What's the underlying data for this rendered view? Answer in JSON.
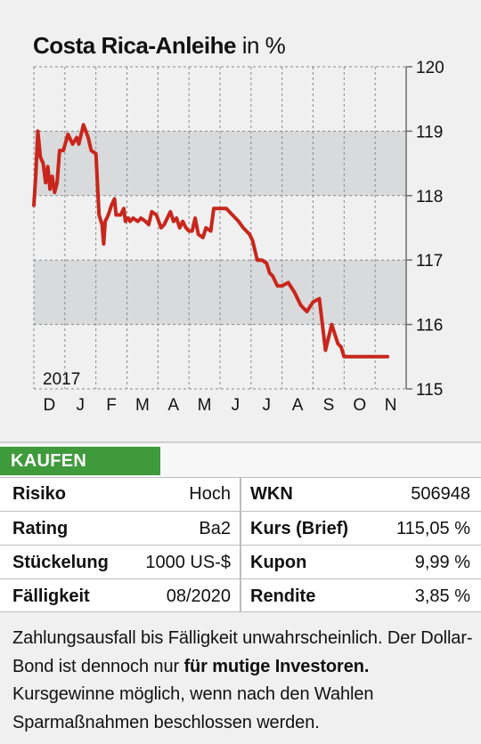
{
  "chart_data": {
    "type": "line",
    "title": "Costa Rica-Anleihe",
    "unit": "in %",
    "year_label": "2017",
    "x_ticks": [
      "D",
      "J",
      "F",
      "M",
      "A",
      "M",
      "J",
      "J",
      "A",
      "S",
      "O",
      "N"
    ],
    "yticks": [
      115,
      116,
      117,
      118,
      119,
      120
    ],
    "ylim": [
      115,
      120
    ],
    "grid": true,
    "shaded_bands": [
      [
        118,
        119
      ],
      [
        116,
        117
      ]
    ],
    "line_color": "#c8261c",
    "series": [
      {
        "x": [
          0,
          0.06,
          0.13,
          0.21,
          0.3,
          0.38,
          0.45,
          0.52,
          0.59,
          0.67,
          0.75,
          0.83,
          0.88,
          0.95,
          1.1,
          1.25,
          1.38,
          1.45,
          1.6,
          1.75,
          1.85,
          2.0,
          2.1,
          2.2,
          2.25,
          2.3,
          2.4,
          2.5,
          2.6,
          2.65,
          2.8,
          2.9,
          2.95,
          3.0,
          3.05,
          3.1,
          3.2,
          3.35,
          3.45,
          3.6,
          3.7,
          3.8,
          3.95,
          4.1,
          4.2,
          4.3,
          4.4,
          4.5,
          4.6,
          4.7,
          4.8,
          4.9,
          5.0,
          5.1,
          5.2,
          5.3,
          5.45,
          5.55,
          5.7,
          5.8,
          5.95,
          6.1,
          6.2,
          6.3,
          6.4,
          6.5,
          6.6,
          6.75,
          6.85,
          6.95,
          7.05,
          7.2,
          7.35,
          7.5,
          7.6,
          7.7,
          7.85,
          8.0,
          8.2,
          8.4,
          8.6,
          8.8,
          9.0,
          9.2,
          9.4,
          9.6,
          9.8,
          9.9,
          10.0,
          10.1,
          10.3,
          10.4,
          10.5,
          10.6,
          10.7,
          10.8,
          10.85,
          10.9,
          11.0,
          11.05,
          11.1,
          11.2,
          11.3,
          11.4
        ],
        "y": [
          117.85,
          118.3,
          119.0,
          118.6,
          118.5,
          118.2,
          118.45,
          118.1,
          118.3,
          118.05,
          118.2,
          118.7,
          118.7,
          118.7,
          118.95,
          118.8,
          118.9,
          118.8,
          119.1,
          118.9,
          118.7,
          118.65,
          117.7,
          117.55,
          117.25,
          117.6,
          117.7,
          117.85,
          117.95,
          117.7,
          117.7,
          117.8,
          117.6,
          117.65,
          117.65,
          117.6,
          117.65,
          117.6,
          117.65,
          117.6,
          117.55,
          117.75,
          117.7,
          117.5,
          117.55,
          117.65,
          117.75,
          117.6,
          117.65,
          117.5,
          117.6,
          117.5,
          117.45,
          117.45,
          117.65,
          117.4,
          117.35,
          117.5,
          117.45,
          117.8,
          117.8,
          117.8,
          117.8,
          117.75,
          117.7,
          117.65,
          117.6,
          117.5,
          117.45,
          117.4,
          117.3,
          117.0,
          117.0,
          116.95,
          116.8,
          116.75,
          116.6,
          116.6,
          116.65,
          116.5,
          116.3,
          116.2,
          116.35,
          116.4,
          115.6,
          116.0,
          115.7,
          115.65,
          115.5,
          115.5,
          115.5,
          115.5,
          115.5,
          115.5,
          115.5,
          115.5,
          115.5,
          115.5,
          115.5,
          115.5,
          115.5,
          115.5,
          115.5,
          115.5
        ]
      }
    ]
  },
  "verdict": {
    "label": "KAUFEN",
    "color": "#3f9a3c"
  },
  "table": {
    "left": [
      {
        "label": "Risiko",
        "value": "Hoch"
      },
      {
        "label": "Rating",
        "value": "Ba2"
      },
      {
        "label": "Stückelung",
        "value": "1000 US-$"
      },
      {
        "label": "Fälligkeit",
        "value": "08/2020"
      }
    ],
    "right": [
      {
        "label": "WKN",
        "value": "506948"
      },
      {
        "label": "Kurs (Brief)",
        "value": "115,05 %"
      },
      {
        "label": "Kupon",
        "value": "9,99 %"
      },
      {
        "label": "Rendite",
        "value": "3,85 %"
      }
    ]
  },
  "note": {
    "part1": "Zahlungsausfall bis Fälligkeit unwahrscheinlich. Der Dollar-Bond ist dennoch nur ",
    "bold1": "für mutige Investoren.",
    "part2": " Kursgewinne möglich, wenn nach den Wahlen Sparmaßnahmen beschlossen werden."
  }
}
